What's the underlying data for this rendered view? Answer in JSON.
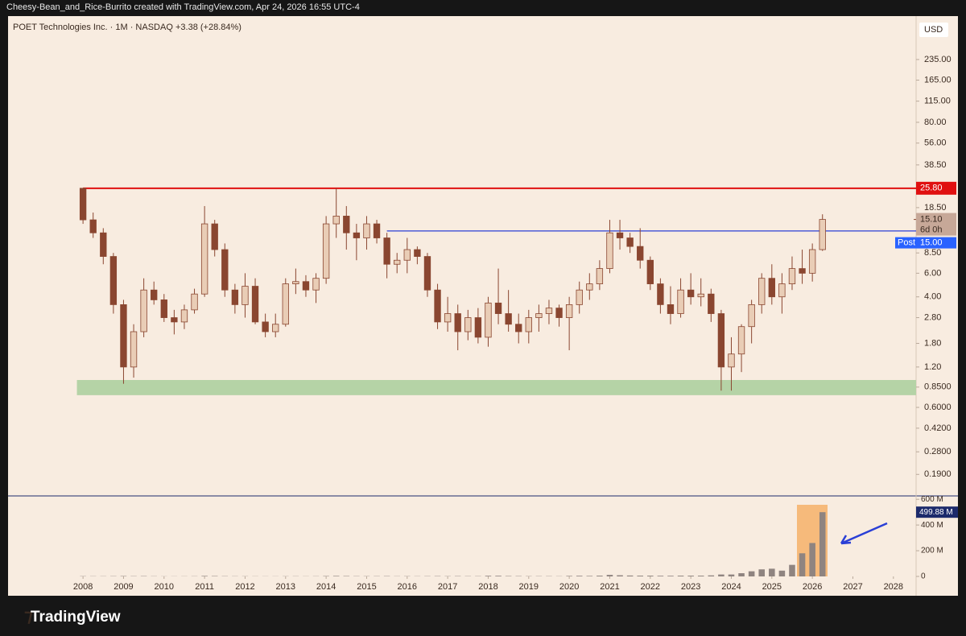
{
  "header": "Cheesy-Bean_and_Rice-Burrito created with TradingView.com, Apr 24, 2026 16:55 UTC-4",
  "footer": "TradingView",
  "chart_data": {
    "type": "candlestick",
    "title": "POET Technologies Inc. · 1M · NASDAQ",
    "change": "+3.38 (+28.84%)",
    "currency": "USD",
    "x": [
      2008,
      2008.25,
      2008.5,
      2008.75,
      2009,
      2009.25,
      2009.5,
      2009.75,
      2010,
      2010.25,
      2010.5,
      2010.75,
      2011,
      2011.25,
      2011.5,
      2011.75,
      2012,
      2012.25,
      2012.5,
      2012.75,
      2013,
      2013.25,
      2013.5,
      2013.75,
      2014,
      2014.25,
      2014.5,
      2014.75,
      2015,
      2015.25,
      2015.5,
      2015.75,
      2016,
      2016.25,
      2016.5,
      2016.75,
      2017,
      2017.25,
      2017.5,
      2017.75,
      2018,
      2018.25,
      2018.5,
      2018.75,
      2019,
      2019.25,
      2019.5,
      2019.75,
      2020,
      2020.25,
      2020.5,
      2020.75,
      2021,
      2021.25,
      2021.5,
      2021.75,
      2022,
      2022.25,
      2022.5,
      2022.75,
      2023,
      2023.25,
      2023.5,
      2023.75,
      2024,
      2024.25,
      2024.5,
      2024.75,
      2025,
      2025.25,
      2025.5,
      2025.75,
      2026,
      2026.25
    ],
    "open": [
      25.8,
      15,
      12,
      8,
      3.5,
      1.2,
      2.2,
      4.5,
      3.8,
      2.8,
      2.6,
      3.2,
      4.2,
      14,
      9,
      4.5,
      3.5,
      4.8,
      2.6,
      2.2,
      2.5,
      5,
      5.2,
      4.5,
      5.5,
      14,
      16,
      12,
      11,
      14,
      11,
      7,
      7.5,
      9,
      8,
      4.5,
      2.6,
      3,
      2.2,
      2.8,
      2,
      3.6,
      3,
      2.5,
      2.2,
      2.8,
      3,
      3.3,
      2.8,
      3.5,
      4.5,
      5,
      6.5,
      12,
      11,
      9.5,
      7.5,
      5,
      3.5,
      3,
      4.5,
      4,
      4.2,
      3,
      1.2,
      1.5,
      2.4,
      3.5,
      5.5,
      4,
      5,
      6.5,
      6,
      9
    ],
    "high": [
      25.8,
      17,
      13,
      8.5,
      3.8,
      2.5,
      5.5,
      5.2,
      4.2,
      3.2,
      3.5,
      4.6,
      19,
      15,
      10,
      5,
      6,
      5.5,
      3,
      3,
      5.5,
      6.5,
      5.8,
      6,
      16,
      25.8,
      19,
      14,
      16,
      15,
      12,
      8.5,
      11,
      9.5,
      8.5,
      5,
      4,
      3.5,
      3.2,
      3.3,
      4,
      6.5,
      4.5,
      3,
      3.2,
      3.5,
      3.8,
      3.5,
      4,
      5.2,
      6,
      7.5,
      15,
      15,
      12,
      13,
      8,
      5.5,
      4.8,
      5.5,
      6,
      5.5,
      4.6,
      3.2,
      2,
      2.5,
      3.8,
      6,
      7,
      6,
      8,
      9,
      10,
      16.5
    ],
    "low": [
      14,
      11,
      7,
      3,
      0.9,
      1,
      2,
      3.5,
      2.6,
      2.1,
      2.3,
      3,
      4,
      8,
      4,
      3,
      2.8,
      2.5,
      2,
      2,
      2.4,
      4.2,
      4,
      3.6,
      5,
      11,
      9,
      7.5,
      9,
      10,
      5.5,
      6,
      6,
      7,
      4,
      2.3,
      2.2,
      1.6,
      1.9,
      1.8,
      1.7,
      2.5,
      2.2,
      1.8,
      1.8,
      2.2,
      2.5,
      2.4,
      1.6,
      3,
      3.8,
      4.5,
      6,
      9,
      8.5,
      6.5,
      4.5,
      3,
      2.5,
      2.8,
      3.5,
      3.4,
      2.6,
      0.8,
      0.8,
      1.1,
      1.8,
      3,
      3.5,
      3,
      4.5,
      5,
      5.2,
      8.8
    ],
    "close": [
      15,
      12,
      8,
      3.5,
      1.2,
      2.2,
      4.5,
      3.8,
      2.8,
      2.6,
      3.2,
      4.2,
      14,
      9,
      4.5,
      3.5,
      4.8,
      2.6,
      2.2,
      2.5,
      5,
      5.2,
      4.5,
      5.5,
      14,
      16,
      12,
      11,
      14,
      11,
      7,
      7.5,
      9,
      8,
      4.5,
      2.6,
      3,
      2.2,
      2.8,
      2,
      3.6,
      3,
      2.5,
      2.2,
      2.8,
      3,
      3.3,
      2.8,
      3.5,
      4.5,
      5,
      6.5,
      12,
      11,
      9.5,
      7.5,
      5,
      3.5,
      3,
      4.5,
      4,
      4.2,
      3,
      1.2,
      1.5,
      2.4,
      3.5,
      5.5,
      4,
      5,
      6.5,
      6,
      9,
      15.1
    ],
    "volume": [
      2000000,
      1500000,
      1500000,
      2000000,
      3000000,
      2000000,
      2500000,
      1500000,
      1000000,
      1000000,
      1200000,
      1500000,
      4000000,
      3000000,
      2000000,
      1500000,
      1500000,
      1200000,
      1000000,
      1000000,
      1500000,
      1500000,
      1200000,
      1500000,
      3000000,
      4000000,
      3000000,
      2000000,
      2000000,
      2000000,
      2500000,
      1500000,
      2000000,
      1500000,
      2000000,
      2500000,
      2000000,
      2500000,
      2000000,
      2000000,
      5000000,
      5000000,
      3000000,
      2500000,
      2000000,
      2000000,
      2000000,
      1500000,
      4000000,
      5000000,
      4000000,
      6000000,
      12000000,
      9000000,
      7000000,
      6000000,
      6000000,
      5000000,
      5000000,
      6000000,
      6000000,
      6000000,
      8000000,
      15000000,
      15000000,
      25000000,
      40000000,
      55000000,
      60000000,
      45000000,
      90000000,
      180000000,
      260000000,
      499880000
    ],
    "volume_label": "499.88 M",
    "log_y": true,
    "ylim": [
      0.135,
      462
    ],
    "xlim": [
      2006.15,
      2028.56
    ],
    "yticks": [
      {
        "value": 235,
        "label": "235.00"
      },
      {
        "value": 165,
        "label": "165.00"
      },
      {
        "value": 115,
        "label": "115.00"
      },
      {
        "value": 80,
        "label": "80.00"
      },
      {
        "value": 56,
        "label": "56.00"
      },
      {
        "value": 38.5,
        "label": "38.50"
      },
      {
        "value": 18.5,
        "label": "18.50"
      },
      {
        "value": 8.5,
        "label": "8.50"
      },
      {
        "value": 6,
        "label": "6.00"
      },
      {
        "value": 4,
        "label": "4.00"
      },
      {
        "value": 2.8,
        "label": "2.80"
      },
      {
        "value": 1.8,
        "label": "1.80"
      },
      {
        "value": 1.2,
        "label": "1.20"
      },
      {
        "value": 0.85,
        "label": "0.8500"
      },
      {
        "value": 0.6,
        "label": "0.6000"
      },
      {
        "value": 0.42,
        "label": "0.4200"
      },
      {
        "value": 0.28,
        "label": "0.2800"
      },
      {
        "value": 0.19,
        "label": "0.1900"
      }
    ],
    "xticks": [
      2008,
      2009,
      2010,
      2011,
      2012,
      2013,
      2014,
      2015,
      2016,
      2017,
      2018,
      2019,
      2020,
      2021,
      2022,
      2023,
      2024,
      2025,
      2026,
      2027,
      2028
    ],
    "vlim": [
      0,
      620000000
    ],
    "vticks": [
      0,
      {
        "value": 200000000,
        "label": "200 M"
      },
      {
        "value": 400000000,
        "label": "400 M"
      },
      {
        "value": 600000000,
        "label": "600 M"
      }
    ],
    "resistance": {
      "value": 25.8,
      "label": "25.80",
      "color": "#e01010"
    },
    "level": {
      "value": 12.4,
      "from": 2015.5,
      "color": "#2a3fd6"
    },
    "support_zone": {
      "low": 0.74,
      "high": 0.96,
      "from": 2007.85,
      "color": "#b5d3a6"
    },
    "last_price": {
      "value": 15.1,
      "label": "15.10",
      "countdown": "6d 0h"
    },
    "post": {
      "name": "Post",
      "value": 15,
      "label": "15.00"
    },
    "up_color": "#e9cdb6",
    "down_color": "#8a4630",
    "volume_color": "#8f8480"
  }
}
